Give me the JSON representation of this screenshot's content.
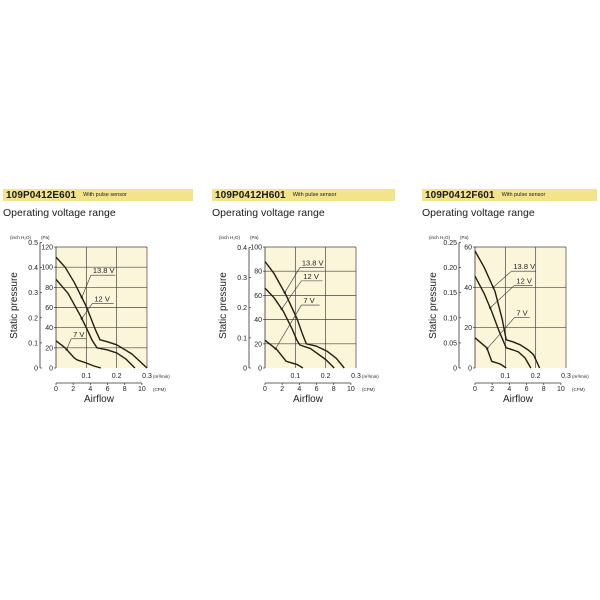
{
  "panels": [
    {
      "model": "109P0412E601",
      "note": "With pulse sensor",
      "subtitle": "Operating voltage range"
    },
    {
      "model": "109P0412H601",
      "note": "With pulse sensor",
      "subtitle": "Operating voltage range"
    },
    {
      "model": "109P0412F601",
      "note": "With pulse sensor",
      "subtitle": "Operating voltage range"
    }
  ],
  "chart_data": [
    {
      "type": "line",
      "ylabel": "Static pressure",
      "xlabel": "Airflow",
      "y_unit_left": "(inch H₂O)",
      "y_unit_right": "(Pa)",
      "x_unit_top": "(m³/min)",
      "x_unit_bottom": "(CFM)",
      "ylim_pa": [
        0,
        120
      ],
      "yticks_pa": [
        0,
        20,
        40,
        60,
        80,
        100,
        120
      ],
      "yticks_inch": [
        "0",
        "0.1",
        "0.2",
        "0.3",
        "0.4",
        "0.5"
      ],
      "xlim_m3min": [
        0,
        0.3
      ],
      "xticks_m3min": [
        "0.1",
        "0.2",
        "0.3"
      ],
      "xticks_cfm": [
        "0",
        "2",
        "4",
        "6",
        "8",
        "10"
      ],
      "grid": true,
      "series": [
        {
          "name": "13.8 V",
          "x": [
            0,
            0.03,
            0.06,
            0.1,
            0.13,
            0.145,
            0.17,
            0.2,
            0.25,
            0.3
          ],
          "y": [
            110,
            100,
            85,
            61,
            38,
            28,
            26,
            23,
            14,
            0
          ]
        },
        {
          "name": "12 V",
          "x": [
            0,
            0.04,
            0.08,
            0.1,
            0.12,
            0.135,
            0.17,
            0.2,
            0.23,
            0.26
          ],
          "y": [
            88,
            74,
            52,
            40,
            27,
            20,
            18,
            15,
            9,
            0
          ]
        },
        {
          "name": "7 V",
          "x": [
            0,
            0.03,
            0.06,
            0.07,
            0.1,
            0.125,
            0.148
          ],
          "y": [
            27,
            20,
            10,
            8,
            5,
            2,
            0
          ]
        }
      ]
    },
    {
      "type": "line",
      "ylabel": "Static pressure",
      "xlabel": "Airflow",
      "y_unit_left": "(inch H₂O)",
      "y_unit_right": "(Pa)",
      "x_unit_top": "(m³/min)",
      "x_unit_bottom": "(CFM)",
      "ylim_pa": [
        0,
        100
      ],
      "yticks_pa": [
        0,
        20,
        40,
        60,
        80,
        100
      ],
      "yticks_inch": [
        "0",
        "0.1",
        "0.2",
        "0.3",
        "0.4"
      ],
      "xlim_m3min": [
        0,
        0.3
      ],
      "xticks_m3min": [
        "0.1",
        "0.2",
        "0.3"
      ],
      "xticks_cfm": [
        "0",
        "2",
        "4",
        "6",
        "8",
        "10"
      ],
      "grid": true,
      "series": [
        {
          "name": "13.8 V",
          "x": [
            0,
            0.03,
            0.07,
            0.105,
            0.125,
            0.136,
            0.17,
            0.204,
            0.235,
            0.261
          ],
          "y": [
            88,
            78,
            60,
            41,
            27,
            20,
            18,
            14,
            8,
            0
          ]
        },
        {
          "name": "12 V",
          "x": [
            0,
            0.03,
            0.06,
            0.09,
            0.105,
            0.115,
            0.15,
            0.2,
            0.228
          ],
          "y": [
            66,
            58,
            47,
            32,
            23,
            19,
            16,
            7,
            0
          ]
        },
        {
          "name": "7 V",
          "x": [
            0,
            0.04,
            0.07,
            0.105,
            0.125
          ],
          "y": [
            23,
            15,
            5.5,
            3,
            0
          ]
        }
      ]
    },
    {
      "type": "line",
      "ylabel": "Static pressure",
      "xlabel": "Airflow",
      "y_unit_left": "(inch H₂O)",
      "y_unit_right": "(Pa)",
      "x_unit_top": "(m³/min)",
      "x_unit_bottom": "(CFM)",
      "ylim_pa": [
        0,
        60
      ],
      "yticks_pa": [
        0,
        20,
        40,
        60
      ],
      "yticks_inch": [
        "0",
        "0.05",
        "0.10",
        "0.15",
        "0.20",
        "0.25"
      ],
      "xlim_m3min": [
        0,
        0.3
      ],
      "xticks_m3min": [
        "0.1",
        "0.2",
        "0.3"
      ],
      "xticks_cfm": [
        "0",
        "2",
        "4",
        "6",
        "8",
        "10"
      ],
      "grid": true,
      "series": [
        {
          "name": "13.8 V",
          "x": [
            0,
            0.03,
            0.066,
            0.09,
            0.103,
            0.125,
            0.149,
            0.175,
            0.193,
            0.213
          ],
          "y": [
            58,
            50,
            38,
            24,
            14,
            13,
            11.5,
            9,
            6.6,
            0
          ]
        },
        {
          "name": "12 V",
          "x": [
            0,
            0.03,
            0.055,
            0.08,
            0.103,
            0.125,
            0.143,
            0.165,
            0.184
          ],
          "y": [
            45.5,
            37,
            28,
            18,
            10,
            9,
            8,
            5,
            0
          ]
        },
        {
          "name": "7 V",
          "x": [
            0,
            0.039,
            0.055,
            0.083,
            0.103
          ],
          "y": [
            15,
            10,
            3.3,
            2,
            0
          ]
        }
      ]
    }
  ]
}
